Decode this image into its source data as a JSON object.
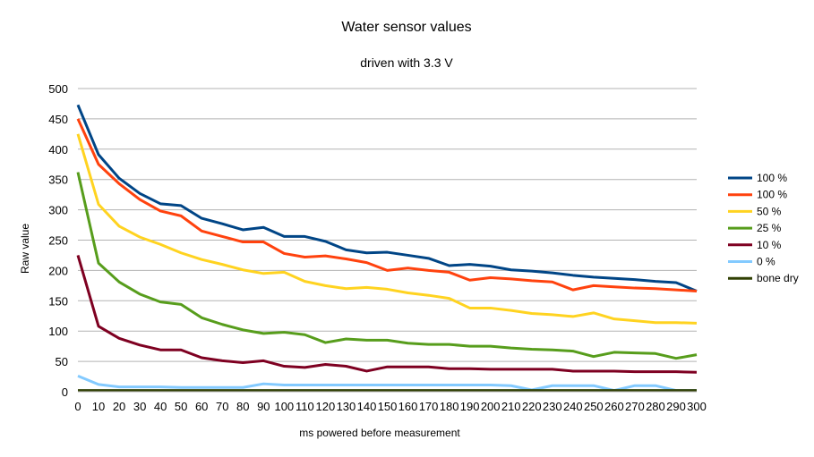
{
  "chart_data": {
    "type": "line",
    "title": "Water sensor values",
    "subtitle": "driven with 3.3 V",
    "xlabel": "ms powered before measurement",
    "ylabel": "Raw value",
    "xlim": [
      0,
      300
    ],
    "ylim": [
      0,
      500
    ],
    "x": [
      0,
      10,
      20,
      30,
      40,
      50,
      60,
      70,
      80,
      90,
      100,
      110,
      120,
      130,
      140,
      150,
      160,
      170,
      180,
      190,
      200,
      210,
      220,
      230,
      240,
      250,
      260,
      270,
      280,
      290,
      300
    ],
    "x_ticks": [
      "0",
      "10",
      "20",
      "30",
      "40",
      "50",
      "60",
      "70",
      "80",
      "90",
      "100",
      "110",
      "120",
      "130",
      "140",
      "150",
      "160",
      "170",
      "180",
      "190",
      "200",
      "210",
      "220",
      "230",
      "240",
      "250",
      "260",
      "270",
      "280",
      "290",
      "300"
    ],
    "y_ticks": [
      "0",
      "50",
      "100",
      "150",
      "200",
      "250",
      "300",
      "350",
      "400",
      "450",
      "500"
    ],
    "grid": "horizontal",
    "legend_position": "right",
    "series": [
      {
        "name": "100 %",
        "color": "#004586",
        "values": [
          473,
          391,
          352,
          327,
          310,
          307,
          286,
          277,
          267,
          271,
          256,
          256,
          248,
          234,
          229,
          230,
          225,
          220,
          208,
          210,
          207,
          201,
          199,
          196,
          192,
          189,
          187,
          185,
          182,
          180,
          166
        ]
      },
      {
        "name": "100 %",
        "color": "#ff420e",
        "values": [
          450,
          375,
          343,
          317,
          298,
          290,
          265,
          256,
          247,
          247,
          228,
          222,
          224,
          219,
          213,
          200,
          204,
          200,
          197,
          184,
          188,
          186,
          183,
          181,
          168,
          175,
          173,
          171,
          170,
          168,
          166
        ]
      },
      {
        "name": "50 %",
        "color": "#ffd320",
        "values": [
          425,
          309,
          273,
          255,
          243,
          229,
          218,
          210,
          201,
          195,
          197,
          182,
          175,
          170,
          172,
          169,
          163,
          159,
          154,
          138,
          138,
          134,
          129,
          127,
          124,
          130,
          120,
          117,
          114,
          114,
          113
        ]
      },
      {
        "name": "25 %",
        "color": "#579d1c",
        "values": [
          362,
          212,
          181,
          161,
          148,
          144,
          122,
          111,
          102,
          96,
          98,
          94,
          81,
          87,
          85,
          85,
          80,
          78,
          78,
          75,
          75,
          72,
          70,
          69,
          67,
          58,
          65,
          64,
          63,
          55,
          61
        ]
      },
      {
        "name": "10 %",
        "color": "#7e0021",
        "values": [
          225,
          108,
          88,
          77,
          69,
          69,
          56,
          51,
          48,
          51,
          42,
          40,
          45,
          42,
          34,
          41,
          41,
          41,
          38,
          38,
          37,
          37,
          37,
          37,
          34,
          34,
          34,
          33,
          33,
          33,
          32
        ]
      },
      {
        "name": "0 %",
        "color": "#83caff",
        "values": [
          26,
          12,
          8,
          8,
          8,
          7,
          7,
          7,
          7,
          13,
          11,
          11,
          11,
          11,
          11,
          11,
          11,
          11,
          11,
          11,
          11,
          10,
          3,
          10,
          10,
          10,
          2,
          10,
          10,
          2,
          2
        ]
      },
      {
        "name": "bone dry",
        "color": "#314004",
        "values": [
          2,
          2,
          2,
          2,
          2,
          2,
          2,
          2,
          2,
          2,
          2,
          2,
          2,
          2,
          2,
          2,
          2,
          2,
          2,
          2,
          2,
          2,
          2,
          2,
          2,
          2,
          2,
          2,
          2,
          2,
          2
        ]
      }
    ]
  }
}
